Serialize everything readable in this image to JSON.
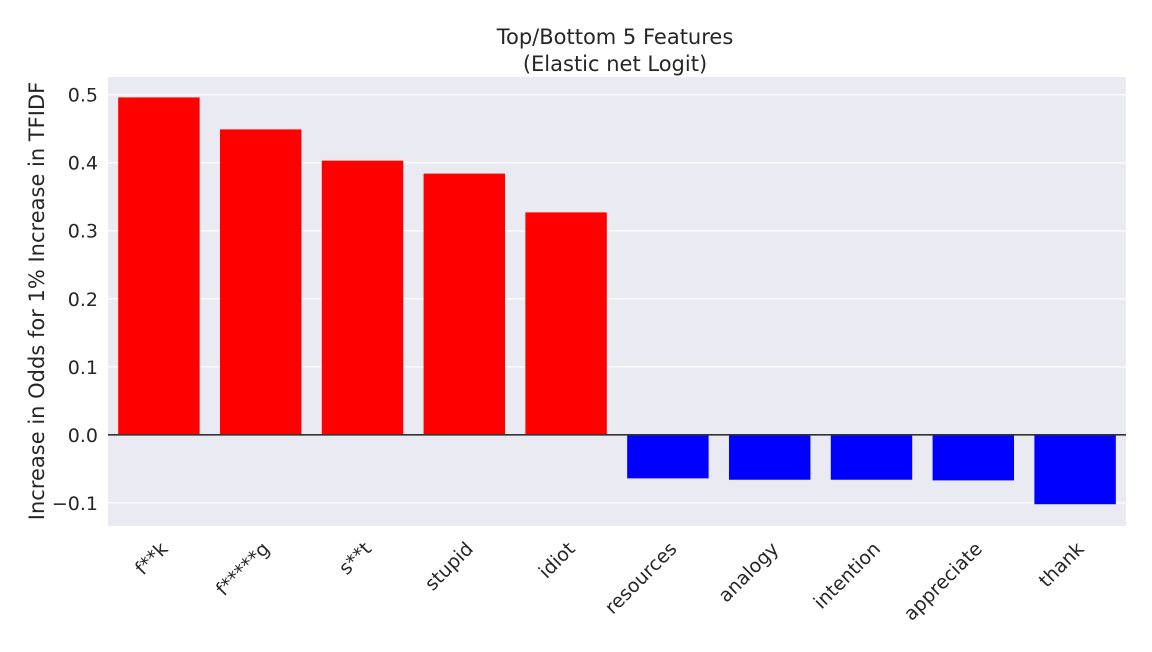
{
  "chart_data": {
    "type": "bar",
    "title": "Top/Bottom 5 Features",
    "subtitle": "(Elastic net Logit)",
    "xlabel": "",
    "ylabel": "Increase in Odds for 1% Increase in TFIDF",
    "categories": [
      "f**k",
      "f*****g",
      "s**t",
      "stupid",
      "idiot",
      "resources",
      "analogy",
      "intention",
      "appreciate",
      "thank"
    ],
    "values": [
      0.496,
      0.449,
      0.403,
      0.384,
      0.327,
      -0.064,
      -0.066,
      -0.066,
      -0.067,
      -0.102
    ],
    "ylim": [
      -0.134,
      0.526
    ],
    "yticks": [
      -0.1,
      0.0,
      0.1,
      0.2,
      0.3,
      0.4,
      0.5
    ],
    "ytick_labels": [
      "−0.1",
      "0.0",
      "0.1",
      "0.2",
      "0.3",
      "0.4",
      "0.5"
    ],
    "grid": true,
    "zero_line": true,
    "colors": {
      "positive": "#ff0000",
      "negative": "#0000ff",
      "plot_background": "#eaeaf2",
      "grid": "#ffffff",
      "zero_line": "#333333"
    }
  }
}
